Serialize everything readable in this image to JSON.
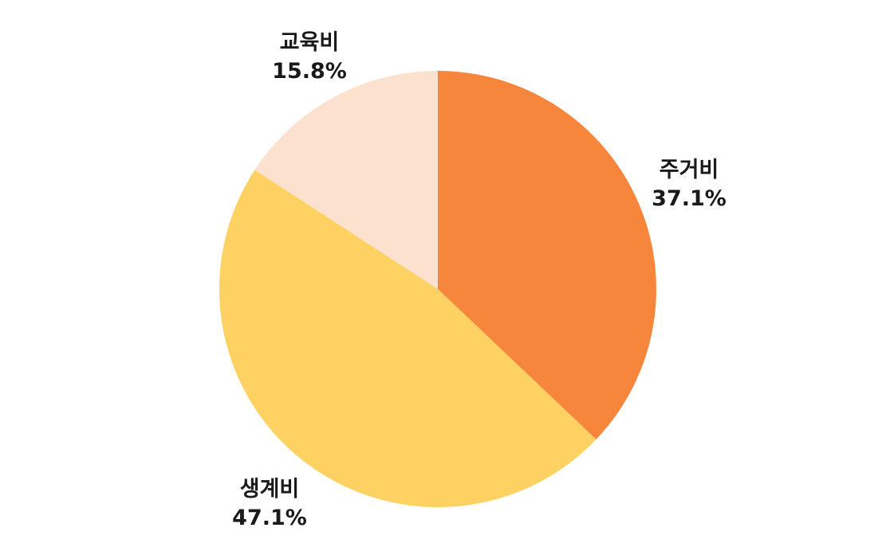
{
  "chart_data": {
    "type": "pie",
    "title": "",
    "slices": [
      {
        "label": "주거비",
        "percent_text": "37.1%",
        "value": 37.1,
        "color": "#F6863B"
      },
      {
        "label": "생계비",
        "percent_text": "47.1%",
        "value": 47.1,
        "color": "#FDD262"
      },
      {
        "label": "교육비",
        "percent_text": "15.8%",
        "value": 15.8,
        "color": "#FCE1CF"
      }
    ],
    "start_angle": "12 o'clock",
    "direction": "clockwise",
    "legend": "none"
  }
}
